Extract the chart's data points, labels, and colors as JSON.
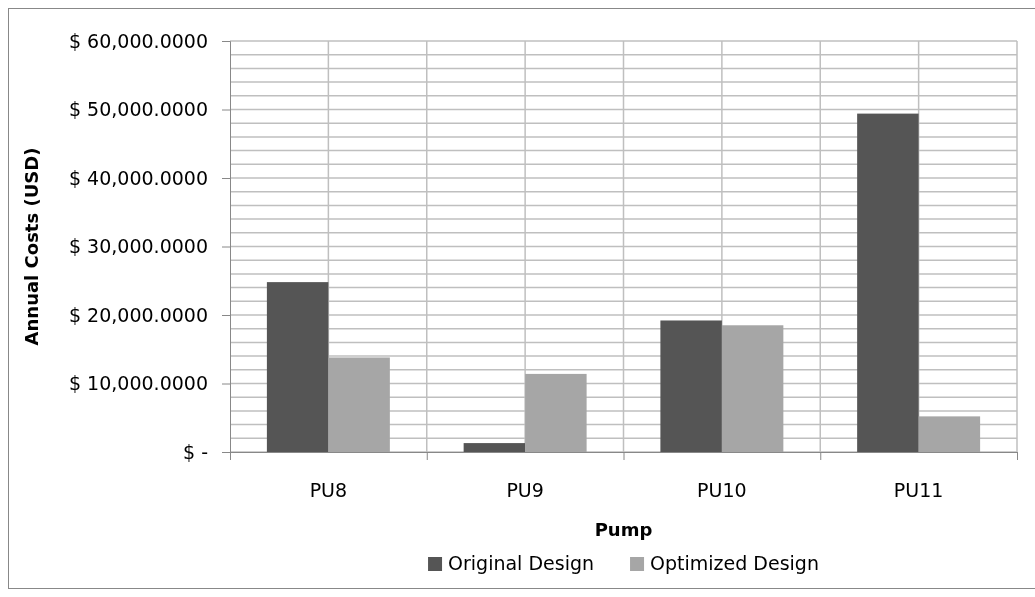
{
  "chart_data": {
    "type": "bar",
    "xlabel": "Pump",
    "ylabel": "Annual Costs (USD)",
    "categories": [
      "PU8",
      "PU9",
      "PU10",
      "PU11"
    ],
    "series": [
      {
        "name": "Original Design",
        "color": "#555555",
        "values": [
          24800,
          1300,
          19200,
          49400
        ]
      },
      {
        "name": "Optimized Design",
        "color": "#a6a6a6",
        "values": [
          13800,
          11400,
          18500,
          5200
        ]
      }
    ],
    "ylim": [
      0,
      60000
    ],
    "yticks": [
      {
        "value": 0,
        "label": "$ -"
      },
      {
        "value": 2000,
        "label": null
      },
      {
        "value": 4000,
        "label": null
      },
      {
        "value": 6000,
        "label": null
      },
      {
        "value": 8000,
        "label": null
      },
      {
        "value": 10000,
        "label": "$ 10,000.0000"
      },
      {
        "value": 12000,
        "label": null
      },
      {
        "value": 14000,
        "label": null
      },
      {
        "value": 16000,
        "label": null
      },
      {
        "value": 18000,
        "label": null
      },
      {
        "value": 20000,
        "label": "$ 20,000.0000"
      },
      {
        "value": 22000,
        "label": null
      },
      {
        "value": 24000,
        "label": null
      },
      {
        "value": 26000,
        "label": null
      },
      {
        "value": 28000,
        "label": null
      },
      {
        "value": 30000,
        "label": "$ 30,000.0000"
      },
      {
        "value": 32000,
        "label": null
      },
      {
        "value": 34000,
        "label": null
      },
      {
        "value": 36000,
        "label": null
      },
      {
        "value": 38000,
        "label": null
      },
      {
        "value": 40000,
        "label": "$ 40,000.0000"
      },
      {
        "value": 42000,
        "label": null
      },
      {
        "value": 44000,
        "label": null
      },
      {
        "value": 46000,
        "label": null
      },
      {
        "value": 48000,
        "label": null
      },
      {
        "value": 50000,
        "label": "$ 50,000.0000"
      },
      {
        "value": 52000,
        "label": null
      },
      {
        "value": 54000,
        "label": null
      },
      {
        "value": 56000,
        "label": null
      },
      {
        "value": 58000,
        "label": null
      },
      {
        "value": 60000,
        "label": "$ 60,000.0000"
      }
    ],
    "grid": true,
    "legend": "bottom"
  }
}
